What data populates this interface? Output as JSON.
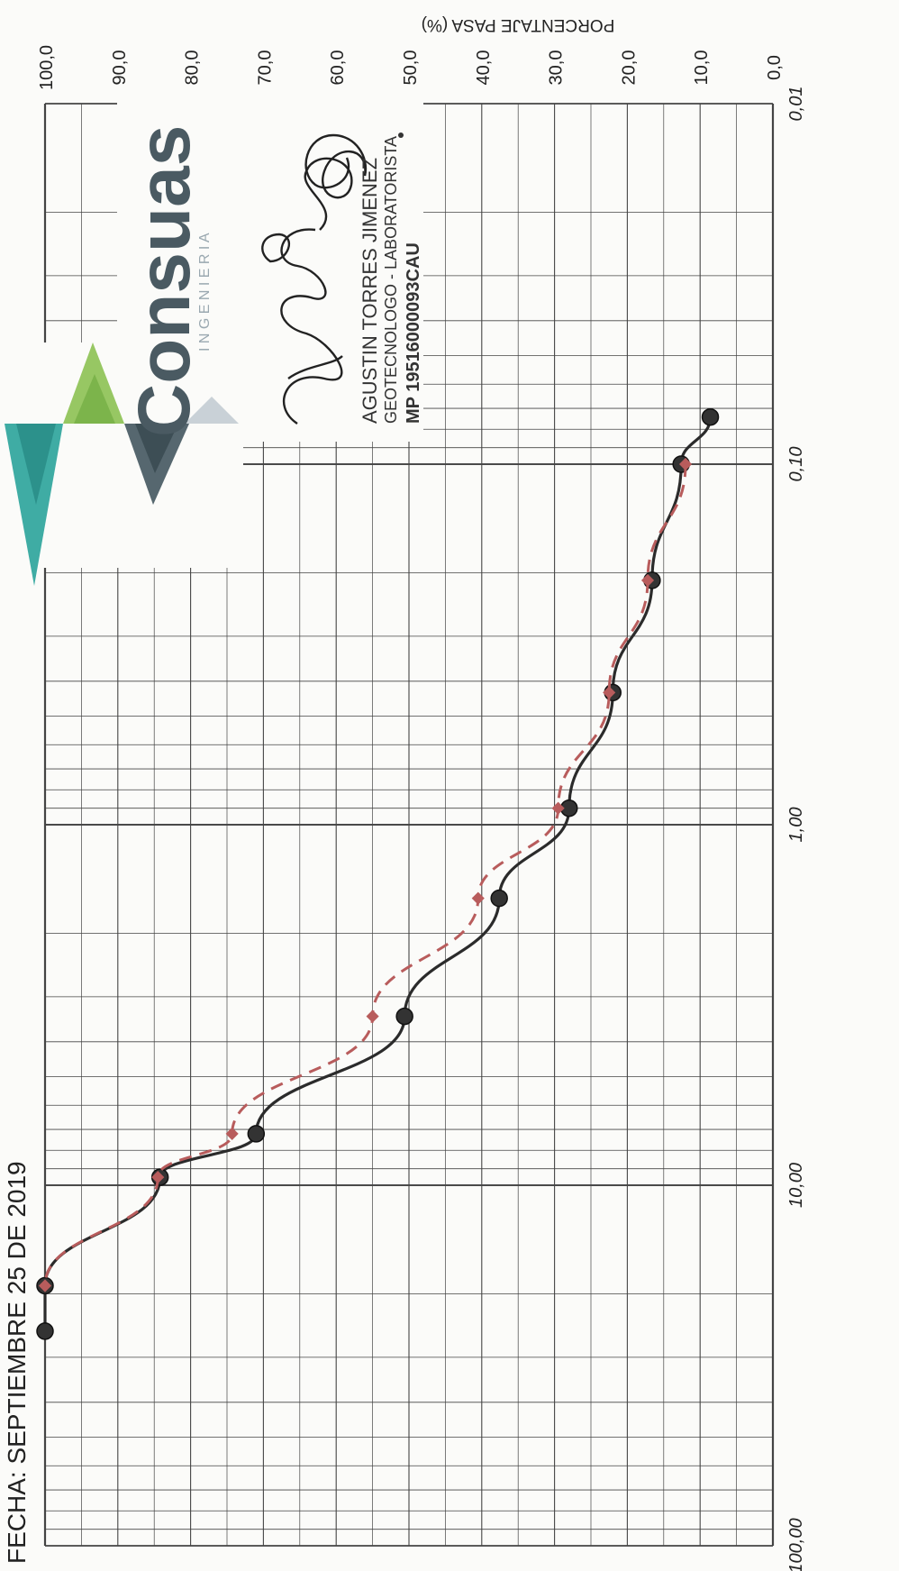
{
  "header": {
    "date_text": "FECHA: SEPTIEMBRE 25 DE 2019"
  },
  "company": {
    "name": "Consuas",
    "subtitle": "I N G E N I E R I A"
  },
  "stamp": {
    "name": "AGUSTIN TORRES JIMENEZ",
    "role": "GEOTECNOLOGO - LABORATORISTA",
    "license": "MP 19516000093CAU"
  },
  "colors": {
    "series_curve": "#2b2b2b",
    "series_dashed": "#b85c5c",
    "grid": "#444444"
  },
  "chart_data": {
    "type": "line",
    "orientation": "rotated-90-clockwise",
    "title": "",
    "ylabel": "PORCENTAJE PASA (%)",
    "xlabel": "",
    "x_scale": "log",
    "xlim": [
      0.01,
      100
    ],
    "ylim": [
      0,
      100
    ],
    "x_ticks": [
      "100,00",
      "10,00",
      "1,00",
      "0,10",
      "0,01"
    ],
    "y_ticks": [
      "0,0",
      "10,0",
      "20,0",
      "30,0",
      "40,0",
      "50,0",
      "60,0",
      "70,0",
      "80,0",
      "90,0",
      "100,0"
    ],
    "grid": true,
    "series": [
      {
        "style": "solid",
        "color": "#2b2b2b",
        "marker": "circle",
        "points": [
          {
            "x": 25.4,
            "y": 100.0
          },
          {
            "x": 19.0,
            "y": 100.0
          },
          {
            "x": 9.5,
            "y": 84.2
          },
          {
            "x": 7.2,
            "y": 71.0
          },
          {
            "x": 3.4,
            "y": 50.6
          },
          {
            "x": 1.6,
            "y": 37.6
          },
          {
            "x": 0.9,
            "y": 28.0
          },
          {
            "x": 0.43,
            "y": 22.0
          },
          {
            "x": 0.21,
            "y": 16.6
          },
          {
            "x": 0.1,
            "y": 12.6
          },
          {
            "x": 0.074,
            "y": 8.6
          }
        ]
      },
      {
        "style": "dashed",
        "color": "#b85c5c",
        "marker": "diamond",
        "points": [
          {
            "x": 19.0,
            "y": 100.0
          },
          {
            "x": 9.5,
            "y": 84.5
          },
          {
            "x": 7.2,
            "y": 74.3
          },
          {
            "x": 3.4,
            "y": 55.0
          },
          {
            "x": 1.6,
            "y": 40.5
          },
          {
            "x": 0.9,
            "y": 29.5
          },
          {
            "x": 0.43,
            "y": 22.5
          },
          {
            "x": 0.21,
            "y": 17.2
          },
          {
            "x": 0.1,
            "y": 12.0
          }
        ]
      }
    ]
  }
}
